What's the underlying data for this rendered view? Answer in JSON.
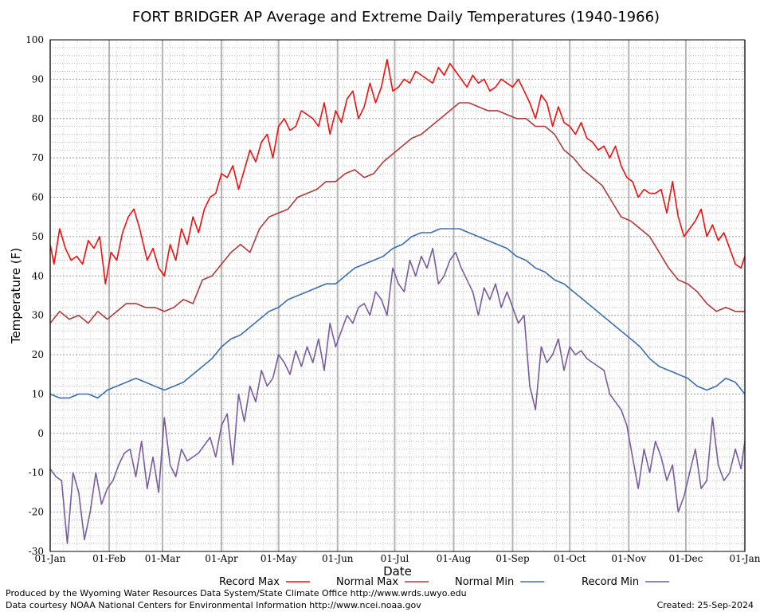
{
  "chart_data": {
    "type": "line",
    "title": "FORT BRIDGER AP Average and Extreme Daily Temperatures (1940-1966)",
    "xlabel": "Date",
    "ylabel": "Temperature (F)",
    "ylim": [
      -30,
      100
    ],
    "yticks": [
      -30,
      -20,
      -10,
      0,
      10,
      20,
      30,
      40,
      50,
      60,
      70,
      80,
      90,
      100
    ],
    "xlim": [
      1,
      366
    ],
    "xticks": [
      {
        "day": 1,
        "label": "01-Jan"
      },
      {
        "day": 32,
        "label": "01-Feb"
      },
      {
        "day": 60,
        "label": "01-Mar"
      },
      {
        "day": 91,
        "label": "01-Apr"
      },
      {
        "day": 121,
        "label": "01-May"
      },
      {
        "day": 152,
        "label": "01-Jun"
      },
      {
        "day": 182,
        "label": "01-Jul"
      },
      {
        "day": 213,
        "label": "01-Aug"
      },
      {
        "day": 244,
        "label": "01-Sep"
      },
      {
        "day": 274,
        "label": "01-Oct"
      },
      {
        "day": 305,
        "label": "01-Nov"
      },
      {
        "day": 335,
        "label": "01-Dec"
      },
      {
        "day": 366,
        "label": "01-Jan"
      }
    ],
    "grid": true,
    "legend_position": "bottom",
    "series": [
      {
        "name": "Record Max",
        "color": "#ee1111",
        "x": [
          1,
          3,
          6,
          9,
          12,
          15,
          18,
          21,
          24,
          27,
          30,
          33,
          36,
          39,
          42,
          45,
          48,
          52,
          55,
          58,
          61,
          64,
          67,
          70,
          73,
          76,
          79,
          82,
          85,
          88,
          91,
          94,
          97,
          100,
          103,
          106,
          109,
          112,
          115,
          118,
          121,
          124,
          127,
          130,
          133,
          136,
          139,
          142,
          145,
          148,
          151,
          154,
          157,
          160,
          163,
          166,
          169,
          172,
          175,
          178,
          181,
          184,
          187,
          190,
          193,
          196,
          199,
          202,
          205,
          208,
          211,
          214,
          217,
          220,
          223,
          226,
          229,
          232,
          235,
          238,
          241,
          244,
          247,
          250,
          253,
          256,
          259,
          262,
          265,
          268,
          271,
          274,
          277,
          280,
          283,
          286,
          289,
          292,
          295,
          298,
          301,
          304,
          307,
          310,
          313,
          316,
          319,
          322,
          325,
          328,
          331,
          334,
          337,
          340,
          343,
          346,
          349,
          352,
          355,
          358,
          361,
          364,
          366
        ],
        "values": [
          48,
          43,
          52,
          47,
          44,
          45,
          43,
          49,
          47,
          50,
          38,
          46,
          44,
          51,
          55,
          57,
          52,
          44,
          47,
          42,
          40,
          48,
          44,
          52,
          48,
          55,
          51,
          57,
          60,
          61,
          66,
          65,
          68,
          62,
          67,
          72,
          69,
          74,
          76,
          70,
          78,
          80,
          77,
          78,
          82,
          81,
          80,
          78,
          84,
          76,
          82,
          79,
          85,
          87,
          80,
          83,
          89,
          84,
          88,
          95,
          87,
          88,
          90,
          89,
          92,
          91,
          90,
          89,
          93,
          91,
          94,
          92,
          90,
          88,
          91,
          89,
          90,
          87,
          88,
          90,
          89,
          88,
          90,
          87,
          84,
          80,
          86,
          84,
          78,
          83,
          79,
          78,
          76,
          79,
          75,
          74,
          72,
          73,
          70,
          73,
          68,
          65,
          64,
          60,
          62,
          61,
          61,
          62,
          56,
          64,
          55,
          50,
          52,
          54,
          57,
          50,
          53,
          49,
          51,
          47,
          43,
          42,
          45
        ]
      },
      {
        "name": "Normal Max",
        "color": "#b23a3a",
        "x": [
          1,
          6,
          11,
          16,
          21,
          26,
          31,
          36,
          41,
          46,
          51,
          56,
          61,
          66,
          71,
          76,
          81,
          86,
          91,
          96,
          101,
          106,
          111,
          116,
          121,
          126,
          131,
          136,
          141,
          146,
          151,
          156,
          161,
          166,
          171,
          176,
          181,
          186,
          191,
          196,
          201,
          206,
          211,
          216,
          221,
          226,
          231,
          236,
          241,
          246,
          251,
          256,
          261,
          266,
          271,
          276,
          281,
          286,
          291,
          296,
          301,
          306,
          311,
          316,
          321,
          326,
          331,
          336,
          341,
          346,
          351,
          356,
          361,
          366
        ],
        "values": [
          28,
          31,
          29,
          30,
          28,
          31,
          29,
          31,
          33,
          33,
          32,
          32,
          31,
          32,
          34,
          33,
          39,
          40,
          43,
          46,
          48,
          46,
          52,
          55,
          56,
          57,
          60,
          61,
          62,
          64,
          64,
          66,
          67,
          65,
          66,
          69,
          71,
          73,
          75,
          76,
          78,
          80,
          82,
          84,
          84,
          83,
          82,
          82,
          81,
          80,
          80,
          78,
          78,
          76,
          72,
          70,
          67,
          65,
          63,
          59,
          55,
          54,
          52,
          50,
          46,
          42,
          39,
          38,
          36,
          33,
          31,
          32,
          31,
          31
        ]
      },
      {
        "name": "Normal Min",
        "color": "#3a6fb0",
        "x": [
          1,
          6,
          11,
          16,
          21,
          26,
          31,
          36,
          41,
          46,
          51,
          56,
          61,
          66,
          71,
          76,
          81,
          86,
          91,
          96,
          101,
          106,
          111,
          116,
          121,
          126,
          131,
          136,
          141,
          146,
          151,
          156,
          161,
          166,
          171,
          176,
          181,
          186,
          191,
          196,
          201,
          206,
          211,
          216,
          221,
          226,
          231,
          236,
          241,
          246,
          251,
          256,
          261,
          266,
          271,
          276,
          281,
          286,
          291,
          296,
          301,
          306,
          311,
          316,
          321,
          326,
          331,
          336,
          341,
          346,
          351,
          356,
          361,
          366
        ],
        "values": [
          10,
          9,
          9,
          10,
          10,
          9,
          11,
          12,
          13,
          14,
          13,
          12,
          11,
          12,
          13,
          15,
          17,
          19,
          22,
          24,
          25,
          27,
          29,
          31,
          32,
          34,
          35,
          36,
          37,
          38,
          38,
          40,
          42,
          43,
          44,
          45,
          47,
          48,
          50,
          51,
          51,
          52,
          52,
          52,
          51,
          50,
          49,
          48,
          47,
          45,
          44,
          42,
          41,
          39,
          38,
          36,
          34,
          32,
          30,
          28,
          26,
          24,
          22,
          19,
          17,
          16,
          15,
          14,
          12,
          11,
          12,
          14,
          13,
          10
        ]
      },
      {
        "name": "Record Min",
        "color": "#7a5c9e",
        "x": [
          1,
          4,
          7,
          10,
          13,
          16,
          19,
          22,
          25,
          28,
          31,
          34,
          37,
          40,
          43,
          46,
          49,
          52,
          55,
          58,
          61,
          64,
          67,
          70,
          73,
          76,
          79,
          82,
          85,
          88,
          91,
          94,
          97,
          100,
          103,
          106,
          109,
          112,
          115,
          118,
          121,
          124,
          127,
          130,
          133,
          136,
          139,
          142,
          145,
          148,
          151,
          154,
          157,
          160,
          163,
          166,
          169,
          172,
          175,
          178,
          181,
          184,
          187,
          190,
          193,
          196,
          199,
          202,
          205,
          208,
          211,
          214,
          217,
          220,
          223,
          226,
          229,
          232,
          235,
          238,
          241,
          244,
          247,
          250,
          253,
          256,
          259,
          262,
          265,
          268,
          271,
          274,
          277,
          280,
          283,
          286,
          289,
          292,
          295,
          298,
          301,
          304,
          307,
          310,
          313,
          316,
          319,
          322,
          325,
          328,
          331,
          334,
          337,
          340,
          343,
          346,
          349,
          352,
          355,
          358,
          361,
          364,
          366
        ],
        "values": [
          -9,
          -11,
          -12,
          -28,
          -10,
          -15,
          -27,
          -20,
          -10,
          -18,
          -14,
          -12,
          -8,
          -5,
          -4,
          -11,
          -2,
          -14,
          -6,
          -15,
          4,
          -8,
          -11,
          -4,
          -7,
          -6,
          -5,
          -3,
          -1,
          -6,
          2,
          5,
          -8,
          10,
          3,
          12,
          8,
          16,
          12,
          14,
          20,
          18,
          15,
          21,
          17,
          22,
          18,
          24,
          16,
          28,
          22,
          26,
          30,
          28,
          32,
          33,
          30,
          36,
          34,
          30,
          42,
          38,
          36,
          44,
          40,
          45,
          42,
          47,
          38,
          40,
          44,
          46,
          42,
          39,
          36,
          30,
          37,
          34,
          38,
          32,
          36,
          32,
          28,
          30,
          12,
          6,
          22,
          18,
          20,
          24,
          16,
          22,
          20,
          21,
          19,
          18,
          17,
          16,
          10,
          8,
          6,
          2,
          -6,
          -14,
          -4,
          -10,
          -2,
          -6,
          -12,
          -8,
          -20,
          -16,
          -10,
          -4,
          -14,
          -12,
          4,
          -8,
          -12,
          -10,
          -4,
          -9,
          -2
        ]
      }
    ]
  },
  "footer": {
    "produced_by": "Produced by the Wyoming Water Resources Data System/State Climate Office http://www.wrds.uwyo.edu",
    "data_courtesy": "Data courtesy NOAA National Centers for Environmental Information http://www.ncei.noaa.gov",
    "created": "Created: 25-Sep-2024"
  }
}
